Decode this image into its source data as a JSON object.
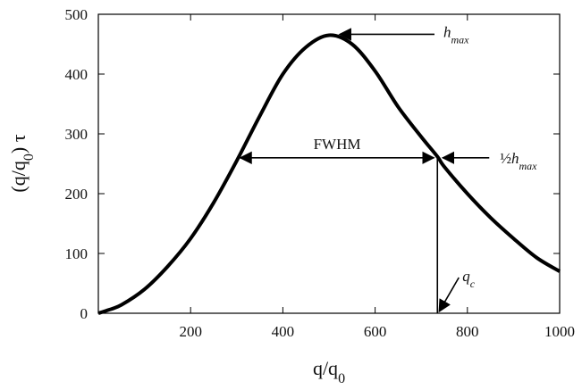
{
  "chart_data": {
    "type": "line",
    "xlabel": "q/q",
    "xlabel_sub": "0",
    "ylabel_pre": "(q/q",
    "ylabel_sub": "0",
    "ylabel_post": ") τ",
    "xlim": [
      0,
      1000
    ],
    "ylim": [
      0,
      500
    ],
    "x_ticks": [
      200,
      400,
      600,
      800,
      1000
    ],
    "y_ticks": [
      0,
      100,
      200,
      300,
      400,
      500
    ],
    "grid": false,
    "series": [
      {
        "x": [
          0,
          20,
          50,
          100,
          150,
          200,
          250,
          300,
          350,
          400,
          450,
          500,
          550,
          600,
          650,
          700,
          735,
          750,
          800,
          850,
          900,
          950,
          1000
        ],
        "y": [
          0,
          5,
          14,
          40,
          78,
          125,
          185,
          255,
          330,
          400,
          445,
          465,
          450,
          405,
          345,
          295,
          262,
          245,
          200,
          160,
          125,
          93,
          70
        ]
      }
    ],
    "annotations": {
      "peak": {
        "label": "h",
        "label_sub": "max",
        "x": 500,
        "y": 465
      },
      "half": {
        "frac": "½",
        "label": "h",
        "label_sub": "max",
        "x": 735,
        "y": 260
      },
      "fwhm": {
        "label": "FWHM",
        "x_start": 300,
        "x_end": 735,
        "y": 260
      },
      "qc": {
        "label": "q",
        "label_sub": "c",
        "x": 735
      }
    },
    "color": "#000000"
  }
}
